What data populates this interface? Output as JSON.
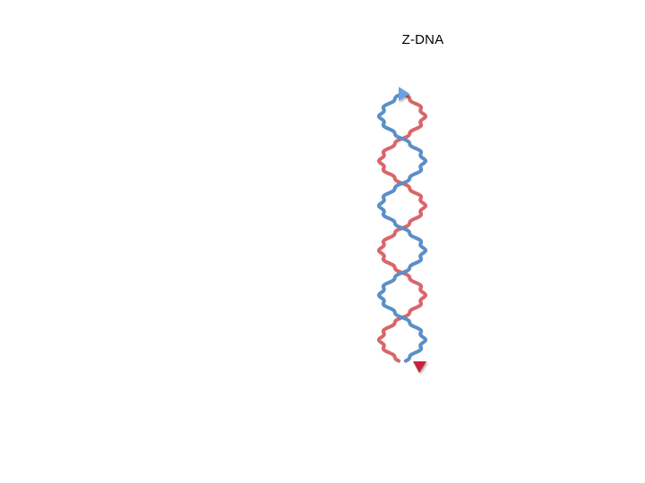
{
  "diagram": {
    "title": "Z-DNA",
    "strand_a": {
      "color": "#5b8fc7",
      "arrow_color": "#6a9fe0",
      "arrow_icon": "triangle-right"
    },
    "strand_b": {
      "color": "#d9666a",
      "arrow_color": "#c8233f",
      "arrow_icon": "triangle-down"
    }
  }
}
